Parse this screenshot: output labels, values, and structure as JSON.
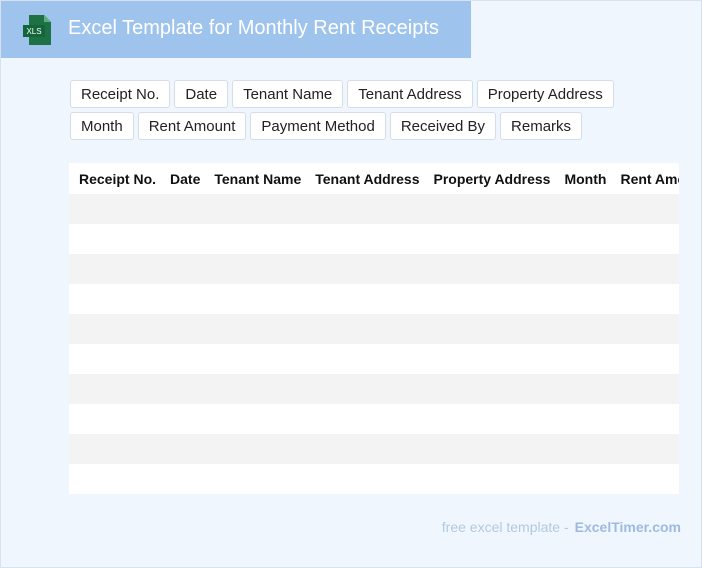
{
  "header": {
    "icon": "XLS",
    "title": "Excel Template for Monthly Rent Receipts"
  },
  "fields": [
    "Receipt No.",
    "Date",
    "Tenant Name",
    "Tenant Address",
    "Property Address",
    "Month",
    "Rent Amount",
    "Payment Method",
    "Received By",
    "Remarks"
  ],
  "table": {
    "columns": [
      "Receipt No.",
      "Date",
      "Tenant Name",
      "Tenant Address",
      "Property Address",
      "Month",
      "Rent Amount"
    ]
  },
  "footer": {
    "text": "free excel template -",
    "link": "ExcelTimer.com"
  }
}
